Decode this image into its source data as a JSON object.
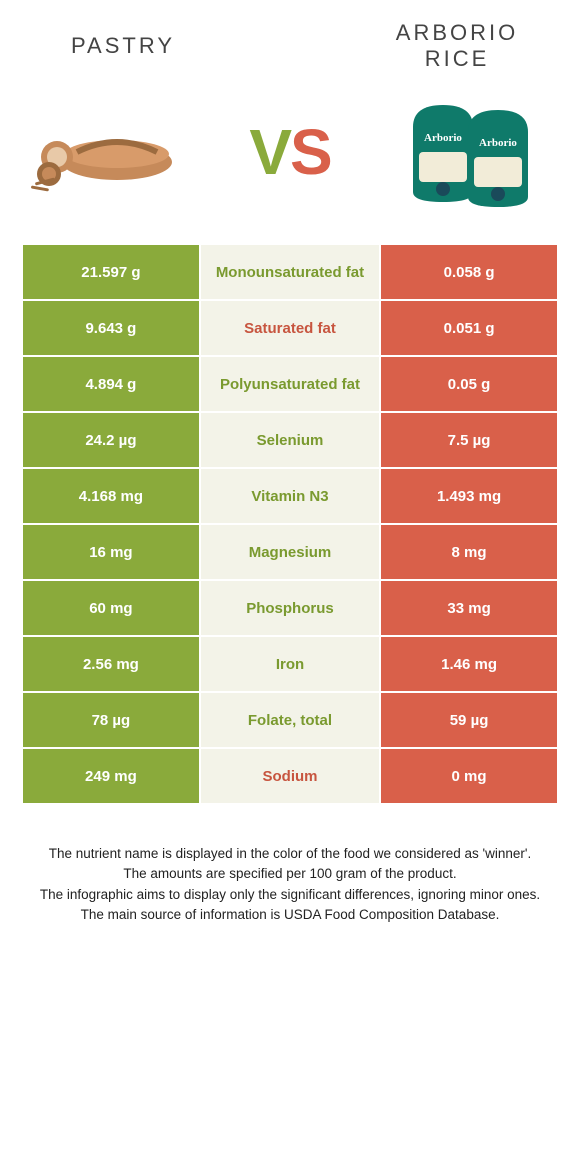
{
  "header": {
    "left_title": "PASTRY",
    "right_title": "ARBORIO RICE",
    "vs_v": "V",
    "vs_s": "S"
  },
  "colors": {
    "green": "#8aaa3b",
    "orange": "#d9604a",
    "mid_bg": "#f3f3e8",
    "label_green": "#7a9a2f",
    "label_orange": "#c7553f",
    "pastry_brown": "#c68a5a",
    "pastry_dark": "#9c6b3f",
    "rice_pack": "#0f7a6a",
    "rice_cream": "#f2ecd8"
  },
  "rows": [
    {
      "left": "21.597 g",
      "label": "Monounsaturated fat",
      "winner": "green",
      "right": "0.058 g"
    },
    {
      "left": "9.643 g",
      "label": "Saturated fat",
      "winner": "orange",
      "right": "0.051 g"
    },
    {
      "left": "4.894 g",
      "label": "Polyunsaturated fat",
      "winner": "green",
      "right": "0.05 g"
    },
    {
      "left": "24.2 µg",
      "label": "Selenium",
      "winner": "green",
      "right": "7.5 µg"
    },
    {
      "left": "4.168 mg",
      "label": "Vitamin N3",
      "winner": "green",
      "right": "1.493 mg"
    },
    {
      "left": "16 mg",
      "label": "Magnesium",
      "winner": "green",
      "right": "8 mg"
    },
    {
      "left": "60 mg",
      "label": "Phosphorus",
      "winner": "green",
      "right": "33 mg"
    },
    {
      "left": "2.56 mg",
      "label": "Iron",
      "winner": "green",
      "right": "1.46 mg"
    },
    {
      "left": "78 µg",
      "label": "Folate, total",
      "winner": "green",
      "right": "59 µg"
    },
    {
      "left": "249 mg",
      "label": "Sodium",
      "winner": "orange",
      "right": "0 mg"
    }
  ],
  "footnotes": {
    "line1": "The nutrient name is displayed in the color of the food we considered as 'winner'.",
    "line2": "The amounts are specified per 100 gram of the product.",
    "line3": "The infographic aims to display only the significant differences, ignoring minor ones.",
    "line4": "The main source of information is USDA Food Composition Database."
  }
}
